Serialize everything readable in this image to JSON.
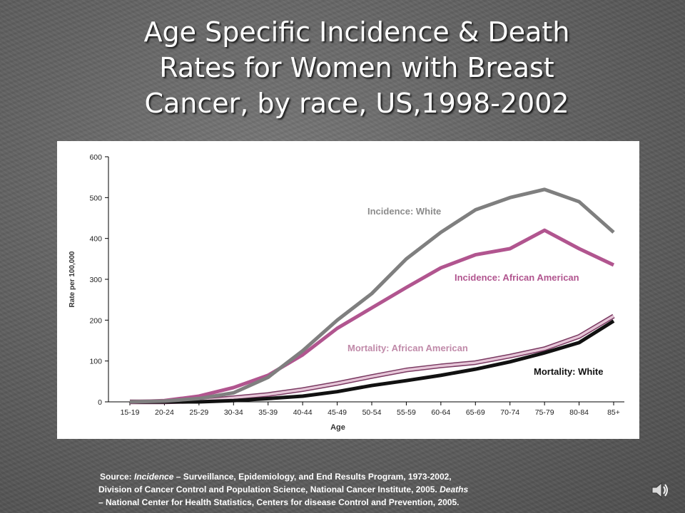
{
  "slide": {
    "title_lines": [
      "Age Specific Incidence & Death",
      "Rates for Women with Breast",
      "Cancer, by race, US,1998-2002"
    ],
    "source_lines": [
      {
        "parts": [
          "Source:  ",
          "Incidence",
          " – Surveillance, Epidemiology, and End Results Program, 1973-2002,"
        ]
      },
      {
        "parts": [
          "Division of Cancer Control and Population Science, National Cancer Institute, 2005.  ",
          "Deaths",
          ""
        ]
      },
      {
        "parts": [
          "– National Center for Health Statistics, Centers for disease Control and Prevention, 2005.",
          "",
          ""
        ]
      }
    ],
    "icon": "speaker-icon"
  },
  "chart_data": {
    "type": "line",
    "xlabel": "Age",
    "ylabel": "Rate per 100,000",
    "ylim": [
      0,
      600
    ],
    "yticks": [
      0,
      100,
      200,
      300,
      400,
      500,
      600
    ],
    "categories": [
      "15-19",
      "20-24",
      "25-29",
      "30-34",
      "35-39",
      "40-44",
      "45-49",
      "50-54",
      "55-59",
      "60-64",
      "65-69",
      "70-74",
      "75-79",
      "80-84",
      "85+"
    ],
    "grid": false,
    "series": [
      {
        "name": "Incidence: White",
        "color": "#7f7f7f",
        "values": [
          0,
          2,
          8,
          22,
          60,
          125,
          200,
          265,
          350,
          415,
          470,
          500,
          520,
          490,
          415
        ]
      },
      {
        "name": "Incidence: African American",
        "color": "#b1558f",
        "values": [
          0,
          3,
          14,
          35,
          65,
          115,
          180,
          230,
          280,
          328,
          360,
          375,
          420,
          375,
          335
        ]
      },
      {
        "name": "Mortality: African American",
        "color": "#e6c6d8",
        "values": [
          0,
          0,
          2,
          10,
          18,
          30,
          45,
          62,
          78,
          88,
          96,
          112,
          130,
          160,
          210
        ]
      },
      {
        "name": "Mortality: White",
        "color": "#111111",
        "values": [
          0,
          0,
          0,
          3,
          8,
          14,
          25,
          40,
          52,
          65,
          80,
          98,
          120,
          145,
          198
        ]
      }
    ],
    "annotations": [
      {
        "text": "Incidence: White",
        "series": 0
      },
      {
        "text": "Incidence: African American",
        "series": 1
      },
      {
        "text": "Mortality: African American",
        "series": 2
      },
      {
        "text": "Mortality: White",
        "series": 3
      }
    ]
  }
}
